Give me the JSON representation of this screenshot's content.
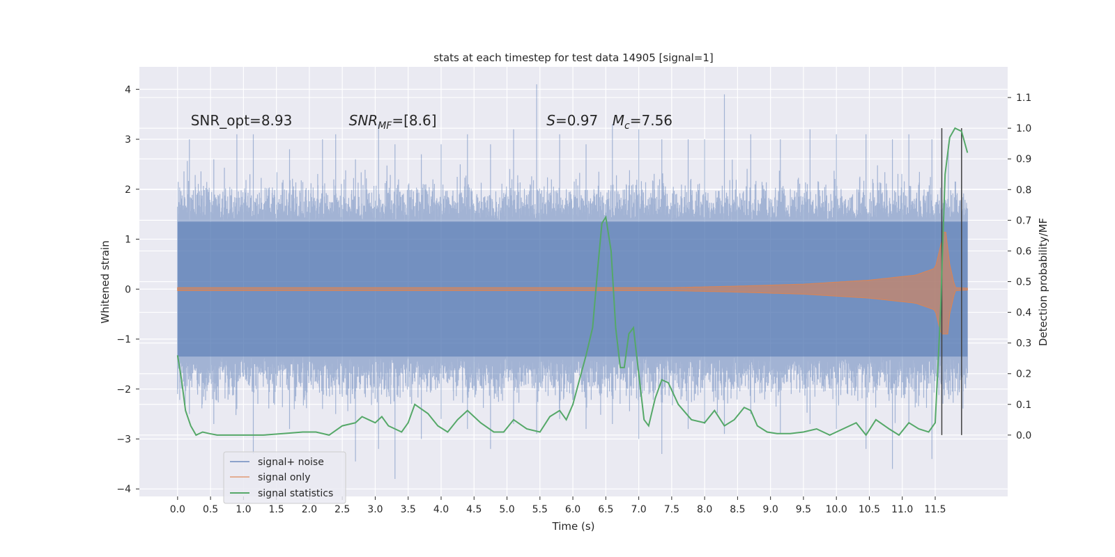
{
  "chart_data": {
    "type": "line",
    "title": "stats at each timestep for test data 14905 [signal=1]",
    "xlabel": "Time (s)",
    "ylabel_left": "Whitened strain",
    "ylabel_right": "Detection probability/MF",
    "xlim": [
      -0.58,
      12.6
    ],
    "ylim_left": [
      -4.15,
      4.45
    ],
    "ylim_right": [
      -0.2,
      1.2
    ],
    "x_ticks": [
      0.0,
      0.5,
      1.0,
      1.5,
      2.0,
      2.5,
      3.0,
      3.5,
      4.0,
      4.5,
      5.0,
      5.5,
      6.0,
      6.5,
      7.0,
      7.5,
      8.0,
      8.5,
      9.0,
      9.5,
      10.0,
      10.5,
      11.0,
      11.5
    ],
    "x_tick_labels": [
      "0.0",
      "0.5",
      "1.0",
      "1.5",
      "2.0",
      "2.5",
      "3.0",
      "3.5",
      "4.0",
      "4.5",
      "5.0",
      "5.5",
      "6.0",
      "6.5",
      "7.0",
      "7.5",
      "8.0",
      "8.5",
      "9.0",
      "9.5",
      "10.0",
      "10.5",
      "11.0",
      "11.5"
    ],
    "y_left_ticks": [
      -4,
      -3,
      -2,
      -1,
      0,
      1,
      2,
      3,
      4
    ],
    "y_left_tick_labels": [
      "−4",
      "−3",
      "−2",
      "−1",
      "0",
      "1",
      "2",
      "3",
      "4"
    ],
    "y_right_ticks": [
      0.0,
      0.1,
      0.2,
      0.3,
      0.4,
      0.5,
      0.6,
      0.7,
      0.8,
      0.9,
      1.0,
      1.1
    ],
    "y_right_tick_labels": [
      "0.0",
      "0.1",
      "0.2",
      "0.3",
      "0.4",
      "0.5",
      "0.6",
      "0.7",
      "0.8",
      "0.9",
      "1.0",
      "1.1"
    ],
    "grid": true,
    "legend_position": "lower-left",
    "annotations": [
      {
        "text": "SNR_opt=8.93",
        "x": 0.2,
        "y": 3.28
      },
      {
        "text": "SNR_MF=[8.6]",
        "x": 2.6,
        "y": 3.28,
        "parts": [
          "SNR",
          "MF",
          "=[8.6]"
        ]
      },
      {
        "text": "S=0.97",
        "x": 5.6,
        "y": 3.28,
        "parts": [
          "S",
          "=0.97"
        ]
      },
      {
        "text": "M_c=7.56",
        "x": 6.6,
        "y": 3.28,
        "parts": [
          "M",
          "c",
          "=7.56"
        ]
      }
    ],
    "vertical_lines": [
      11.6,
      11.9
    ],
    "series": [
      {
        "name": "signal+ noise",
        "color": "#4c72b0",
        "style": "noise-band",
        "x_range": [
          0.0,
          11.99
        ],
        "typical_envelope": 1.35,
        "spikes": [
          [
            0.0,
            1.65,
            -2.1
          ],
          [
            0.18,
            3.0,
            -2.5
          ],
          [
            0.55,
            2.6,
            -2.7
          ],
          [
            0.9,
            3.1,
            -2.4
          ],
          [
            1.15,
            3.1,
            -3.3
          ],
          [
            1.7,
            2.8,
            -2.8
          ],
          [
            2.2,
            3.0,
            -2.4
          ],
          [
            2.4,
            3.1,
            -2.5
          ],
          [
            2.7,
            2.6,
            -3.45
          ],
          [
            3.05,
            3.3,
            -3.2
          ],
          [
            3.3,
            2.9,
            -3.8
          ],
          [
            3.7,
            2.7,
            -3.0
          ],
          [
            4.0,
            2.9,
            -2.6
          ],
          [
            4.4,
            3.1,
            -2.8
          ],
          [
            4.75,
            2.9,
            -3.2
          ],
          [
            5.1,
            3.2,
            -2.7
          ],
          [
            5.45,
            4.1,
            -2.9
          ],
          [
            5.8,
            3.1,
            -2.6
          ],
          [
            6.2,
            2.9,
            -2.8
          ],
          [
            6.6,
            3.3,
            -2.7
          ],
          [
            7.0,
            3.2,
            -3.0
          ],
          [
            7.35,
            3.0,
            -3.3
          ],
          [
            7.75,
            3.0,
            -2.8
          ],
          [
            8.0,
            3.0,
            -2.7
          ],
          [
            8.3,
            3.9,
            -2.9
          ],
          [
            8.7,
            3.1,
            -2.5
          ],
          [
            9.15,
            3.0,
            -2.9
          ],
          [
            9.6,
            3.2,
            -2.7
          ],
          [
            10.0,
            3.1,
            -2.8
          ],
          [
            10.45,
            3.1,
            -3.2
          ],
          [
            10.85,
            3.0,
            -3.6
          ],
          [
            11.1,
            3.1,
            -2.7
          ],
          [
            11.45,
            3.0,
            -3.4
          ],
          [
            11.7,
            2.9,
            -2.1
          ],
          [
            11.95,
            1.5,
            -1.9
          ]
        ]
      },
      {
        "name": "signal only",
        "color": "#dd8452",
        "style": "chirp",
        "x_range": [
          0.0,
          11.99
        ],
        "amplitude_points": [
          [
            0.0,
            0.03
          ],
          [
            7.5,
            0.03
          ],
          [
            8.5,
            0.06
          ],
          [
            9.5,
            0.1
          ],
          [
            10.5,
            0.18
          ],
          [
            11.2,
            0.28
          ],
          [
            11.5,
            0.42
          ],
          [
            11.65,
            1.25
          ],
          [
            11.72,
            0.5
          ],
          [
            11.8,
            0.03
          ],
          [
            11.99,
            0.02
          ]
        ]
      },
      {
        "name": "signal statistics",
        "color": "#55a868",
        "style": "line",
        "axis": "right",
        "x": [
          0.0,
          0.06,
          0.12,
          0.2,
          0.28,
          0.38,
          0.48,
          0.6,
          0.75,
          1.0,
          1.3,
          1.6,
          1.9,
          2.1,
          2.3,
          2.5,
          2.7,
          2.8,
          2.9,
          3.0,
          3.1,
          3.2,
          3.3,
          3.4,
          3.5,
          3.6,
          3.8,
          3.95,
          4.1,
          4.25,
          4.4,
          4.6,
          4.8,
          4.95,
          5.1,
          5.3,
          5.5,
          5.65,
          5.8,
          5.9,
          6.0,
          6.1,
          6.2,
          6.3,
          6.38,
          6.44,
          6.5,
          6.58,
          6.65,
          6.72,
          6.78,
          6.85,
          6.92,
          7.0,
          7.08,
          7.15,
          7.25,
          7.35,
          7.45,
          7.6,
          7.8,
          8.0,
          8.15,
          8.3,
          8.45,
          8.6,
          8.7,
          8.8,
          8.95,
          9.1,
          9.3,
          9.5,
          9.7,
          9.9,
          10.1,
          10.3,
          10.45,
          10.6,
          10.8,
          10.95,
          11.1,
          11.25,
          11.4,
          11.5,
          11.58,
          11.65,
          11.72,
          11.8,
          11.9,
          11.99
        ],
        "y": [
          0.26,
          0.18,
          0.08,
          0.03,
          0.0,
          0.01,
          0.005,
          0.0,
          0.0,
          0.0,
          0.0,
          0.005,
          0.01,
          0.01,
          0.0,
          0.03,
          0.04,
          0.06,
          0.05,
          0.04,
          0.06,
          0.03,
          0.02,
          0.01,
          0.04,
          0.1,
          0.07,
          0.03,
          0.01,
          0.05,
          0.08,
          0.04,
          0.01,
          0.01,
          0.05,
          0.02,
          0.01,
          0.06,
          0.08,
          0.05,
          0.1,
          0.18,
          0.26,
          0.35,
          0.55,
          0.69,
          0.71,
          0.6,
          0.35,
          0.22,
          0.22,
          0.33,
          0.35,
          0.2,
          0.05,
          0.03,
          0.12,
          0.18,
          0.17,
          0.1,
          0.05,
          0.04,
          0.08,
          0.03,
          0.05,
          0.09,
          0.08,
          0.03,
          0.01,
          0.005,
          0.005,
          0.01,
          0.02,
          0.0,
          0.02,
          0.04,
          0.0,
          0.05,
          0.02,
          0.0,
          0.04,
          0.02,
          0.01,
          0.04,
          0.4,
          0.85,
          0.97,
          1.0,
          0.99,
          0.92
        ]
      }
    ]
  }
}
